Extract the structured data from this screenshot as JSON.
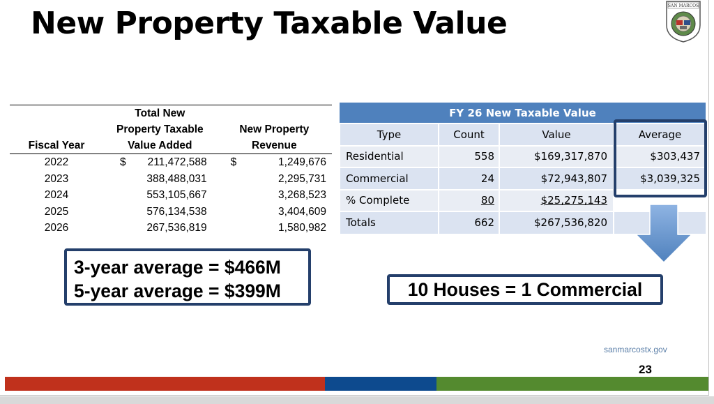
{
  "title": "New Property Taxable Value",
  "seal": {
    "text": "SAN MARCOS",
    "icon": "city-seal-icon"
  },
  "left_table": {
    "headers": {
      "fiscal_year": "Fiscal Year",
      "total_line1": "Total New",
      "total_line2": "Property Taxable",
      "total_line3": "Value Added",
      "revenue_line1": "New Property",
      "revenue_line2": "Revenue"
    },
    "rows": [
      {
        "year": "2022",
        "dollar": "$",
        "value": "211,472,588",
        "dollar2": "$",
        "revenue": "1,249,676"
      },
      {
        "year": "2023",
        "dollar": "",
        "value": "388,488,031",
        "dollar2": "",
        "revenue": "2,295,731"
      },
      {
        "year": "2024",
        "dollar": "",
        "value": "553,105,667",
        "dollar2": "",
        "revenue": "3,268,523"
      },
      {
        "year": "2025",
        "dollar": "",
        "value": "576,134,538",
        "dollar2": "",
        "revenue": "3,404,609"
      },
      {
        "year": "2026",
        "dollar": "",
        "value": "267,536,819",
        "dollar2": "",
        "revenue": "1,580,982"
      }
    ]
  },
  "fy_table": {
    "banner": "FY 26 New Taxable Value",
    "headers": {
      "type": "Type",
      "count": "Count",
      "value": "Value",
      "average": "Average"
    },
    "rows": [
      {
        "type": "Residential",
        "count": "558",
        "value": "$169,317,870",
        "average": "$303,437"
      },
      {
        "type": "Commercial",
        "count": "24",
        "value": "$72,943,807",
        "average": "$3,039,325"
      },
      {
        "type": "% Complete",
        "count": "80",
        "value": "$25,275,143",
        "average": ""
      },
      {
        "type": "Totals",
        "count": "662",
        "value": "$267,536,820",
        "average": ""
      }
    ]
  },
  "callouts": {
    "three_year": "3-year average = $466M",
    "five_year": "5-year average = $399M",
    "houses": "10 Houses = 1 Commercial"
  },
  "footer": {
    "url": "sanmarcostx.gov",
    "page": "23"
  },
  "colors": {
    "accent_blue": "#4f81bd",
    "border_navy": "#243f6b",
    "bar_red": "#c0311c",
    "bar_blue": "#0d4a8e",
    "bar_green": "#548a2f"
  }
}
